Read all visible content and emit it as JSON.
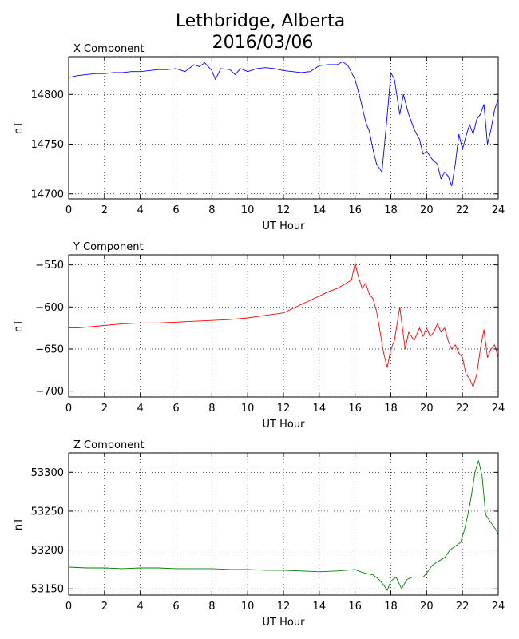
{
  "figure": {
    "title_line1": "Lethbridge, Alberta",
    "title_line2": "2016/03/06"
  },
  "chart_data": [
    {
      "type": "line",
      "title": "X Component",
      "xlabel": "UT Hour",
      "ylabel": "nT",
      "xlim": [
        0,
        24
      ],
      "ylim": [
        14695,
        14838
      ],
      "xticks": [
        0,
        2,
        4,
        6,
        8,
        10,
        12,
        14,
        16,
        18,
        20,
        22,
        24
      ],
      "yticks": [
        14700,
        14750,
        14800
      ],
      "grid": true,
      "color": "#0000ff",
      "x": [
        0,
        0.5,
        1,
        1.5,
        2,
        2.5,
        3,
        3.5,
        4,
        4.5,
        5,
        5.5,
        6,
        6.5,
        7,
        7.3,
        7.6,
        8,
        8.2,
        8.5,
        9,
        9.3,
        9.6,
        10,
        10.5,
        11,
        11.5,
        12,
        12.5,
        13,
        13.5,
        14,
        14.5,
        15,
        15.3,
        15.6,
        16,
        16.3,
        16.6,
        16.8,
        17,
        17.2,
        17.5,
        17.7,
        17.9,
        18,
        18.2,
        18.5,
        18.7,
        19,
        19.3,
        19.6,
        19.8,
        20,
        20.3,
        20.6,
        20.8,
        21,
        21.2,
        21.4,
        21.6,
        21.8,
        22,
        22.2,
        22.4,
        22.6,
        22.8,
        23,
        23.2,
        23.4,
        23.6,
        23.8,
        24
      ],
      "y": [
        14817,
        14819,
        14820,
        14821,
        14821,
        14822,
        14822,
        14823,
        14823,
        14824,
        14825,
        14825,
        14826,
        14823,
        14830,
        14828,
        14832,
        14824,
        14815,
        14826,
        14825,
        14820,
        14826,
        14823,
        14826,
        14827,
        14826,
        14824,
        14823,
        14822,
        14823,
        14829,
        14830,
        14830,
        14833,
        14829,
        14815,
        14795,
        14772,
        14763,
        14745,
        14730,
        14722,
        14760,
        14800,
        14822,
        14815,
        14780,
        14800,
        14780,
        14765,
        14755,
        14740,
        14743,
        14735,
        14730,
        14715,
        14722,
        14718,
        14708,
        14730,
        14760,
        14745,
        14758,
        14770,
        14760,
        14775,
        14780,
        14790,
        14750,
        14765,
        14785,
        14795
      ]
    },
    {
      "type": "line",
      "title": "Y Component",
      "xlabel": "UT Hour",
      "ylabel": "nT",
      "xlim": [
        0,
        24
      ],
      "ylim": [
        -707,
        -538
      ],
      "xticks": [
        0,
        2,
        4,
        6,
        8,
        10,
        12,
        14,
        16,
        18,
        20,
        22,
        24
      ],
      "yticks": [
        -550,
        -600,
        -650,
        -700
      ],
      "grid": true,
      "color": "#ff0000",
      "x": [
        0,
        0.5,
        1,
        1.5,
        2,
        2.5,
        3,
        4,
        5,
        6,
        7,
        8,
        9,
        10,
        11,
        12,
        12.5,
        13,
        13.5,
        14,
        14.5,
        15,
        15.5,
        15.8,
        16,
        16.2,
        16.4,
        16.6,
        16.8,
        17,
        17.2,
        17.4,
        17.6,
        17.8,
        18,
        18.2,
        18.5,
        18.8,
        19,
        19.3,
        19.6,
        19.8,
        20,
        20.2,
        20.4,
        20.6,
        20.8,
        21,
        21.2,
        21.4,
        21.6,
        21.8,
        22,
        22.2,
        22.4,
        22.6,
        22.8,
        23,
        23.2,
        23.4,
        23.6,
        23.8,
        24
      ],
      "y": [
        -625,
        -625,
        -624,
        -623,
        -622,
        -621,
        -620,
        -619,
        -619,
        -618,
        -617,
        -616,
        -615,
        -613,
        -610,
        -607,
        -602,
        -597,
        -592,
        -587,
        -582,
        -578,
        -572,
        -568,
        -548,
        -565,
        -578,
        -572,
        -585,
        -590,
        -605,
        -630,
        -655,
        -672,
        -650,
        -640,
        -600,
        -650,
        -630,
        -640,
        -625,
        -635,
        -625,
        -635,
        -630,
        -620,
        -630,
        -625,
        -640,
        -650,
        -645,
        -655,
        -660,
        -680,
        -685,
        -695,
        -680,
        -650,
        -627,
        -660,
        -650,
        -645,
        -660
      ]
    },
    {
      "type": "line",
      "title": "Z Component",
      "xlabel": "UT Hour",
      "ylabel": "nT",
      "xlim": [
        0,
        24
      ],
      "ylim": [
        53142,
        53325
      ],
      "xticks": [
        0,
        2,
        4,
        6,
        8,
        10,
        12,
        14,
        16,
        18,
        20,
        22,
        24
      ],
      "yticks": [
        53150,
        53200,
        53250,
        53300
      ],
      "grid": true,
      "color": "#008000",
      "x": [
        0,
        1,
        2,
        3,
        4,
        5,
        6,
        7,
        8,
        9,
        10,
        11,
        12,
        13,
        14,
        15,
        15.5,
        16,
        16.3,
        16.6,
        17,
        17.3,
        17.6,
        17.8,
        18,
        18.3,
        18.6,
        18.9,
        19.2,
        19.5,
        19.8,
        20,
        20.3,
        20.6,
        21,
        21.3,
        21.6,
        21.9,
        22.1,
        22.3,
        22.5,
        22.7,
        22.9,
        23.1,
        23.3,
        23.6,
        23.9,
        24
      ],
      "y": [
        53178,
        53177,
        53177,
        53176,
        53177,
        53177,
        53176,
        53176,
        53176,
        53175,
        53175,
        53174,
        53174,
        53173,
        53172,
        53173,
        53174,
        53175,
        53172,
        53170,
        53168,
        53163,
        53155,
        53148,
        53160,
        53165,
        53150,
        53162,
        53165,
        53165,
        53165,
        53170,
        53180,
        53185,
        53190,
        53200,
        53205,
        53210,
        53225,
        53245,
        53270,
        53300,
        53315,
        53295,
        53245,
        53235,
        53225,
        53220
      ]
    }
  ]
}
